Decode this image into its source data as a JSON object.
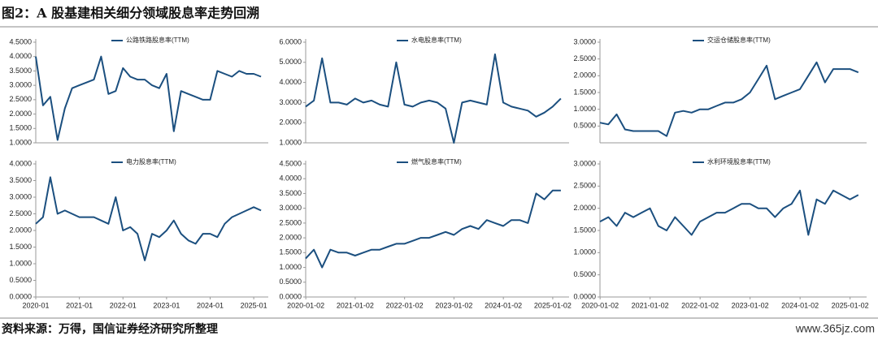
{
  "title": "图2：A 股基建相关细分领域股息率走势回溯",
  "source": "资料来源：万得，国信证券经济研究所整理",
  "watermark": "www.365jz.com",
  "chart_data": [
    {
      "type": "line",
      "xlim": [
        "2020-01",
        "2025-05"
      ],
      "x": [
        "2020-01",
        "2020-03",
        "2020-05",
        "2020-07",
        "2020-09",
        "2020-11",
        "2021-01",
        "2021-03",
        "2021-05",
        "2021-07",
        "2021-09",
        "2021-11",
        "2022-01",
        "2022-03",
        "2022-05",
        "2022-07",
        "2022-09",
        "2022-11",
        "2023-01",
        "2023-03",
        "2023-05",
        "2023-07",
        "2023-09",
        "2023-11",
        "2024-01",
        "2024-03",
        "2024-05",
        "2024-07",
        "2024-09",
        "2024-11",
        "2025-01",
        "2025-03"
      ],
      "ylim": [
        1,
        4.5
      ],
      "yticks": [
        {
          "value": 1,
          "label": "1.0000"
        },
        {
          "value": 1.5,
          "label": "1.5000"
        },
        {
          "value": 2,
          "label": "2.0000"
        },
        {
          "value": 2.5,
          "label": "2.5000"
        },
        {
          "value": 3,
          "label": "3.0000"
        },
        {
          "value": 3.5,
          "label": "3.5000"
        },
        {
          "value": 4,
          "label": "4.0000"
        },
        {
          "value": 4.5,
          "label": "4.5000"
        }
      ],
      "series": [
        {
          "name": "公路铁路股息率(TTM)",
          "color": "#1b4f7f",
          "values": [
            4.0,
            2.3,
            2.6,
            1.1,
            2.2,
            2.9,
            3.0,
            3.1,
            3.2,
            4.0,
            2.7,
            2.8,
            3.6,
            3.3,
            3.2,
            3.2,
            3.0,
            2.9,
            3.4,
            1.4,
            2.8,
            2.7,
            2.6,
            2.5,
            2.5,
            3.5,
            3.4,
            3.3,
            3.5,
            3.4,
            3.4,
            3.3
          ]
        }
      ]
    },
    {
      "type": "line",
      "xlim": [
        "2020-01",
        "2025-05"
      ],
      "x": [
        "2020-01",
        "2020-03",
        "2020-05",
        "2020-07",
        "2020-09",
        "2020-11",
        "2021-01",
        "2021-03",
        "2021-05",
        "2021-07",
        "2021-09",
        "2021-11",
        "2022-01",
        "2022-03",
        "2022-05",
        "2022-07",
        "2022-09",
        "2022-11",
        "2023-01",
        "2023-03",
        "2023-05",
        "2023-07",
        "2023-09",
        "2023-11",
        "2024-01",
        "2024-03",
        "2024-05",
        "2024-07",
        "2024-09",
        "2024-11",
        "2025-01",
        "2025-03"
      ],
      "ylim": [
        1,
        6
      ],
      "yticks": [
        {
          "value": 1,
          "label": "1.0000"
        },
        {
          "value": 2,
          "label": "2.0000"
        },
        {
          "value": 3,
          "label": "3.0000"
        },
        {
          "value": 4,
          "label": "4.0000"
        },
        {
          "value": 5,
          "label": "5.0000"
        },
        {
          "value": 6,
          "label": "6.0000"
        }
      ],
      "series": [
        {
          "name": "水电股息率(TTM)",
          "color": "#1b4f7f",
          "values": [
            2.8,
            3.1,
            5.2,
            3.0,
            3.0,
            2.9,
            3.2,
            3.0,
            3.1,
            2.9,
            2.8,
            5.0,
            2.9,
            2.8,
            3.0,
            3.1,
            3.0,
            2.7,
            1.0,
            3.0,
            3.1,
            3.0,
            2.9,
            5.4,
            3.0,
            2.8,
            2.7,
            2.6,
            2.3,
            2.5,
            2.8,
            3.2
          ]
        }
      ]
    },
    {
      "type": "line",
      "xlim": [
        "2020-01",
        "2025-05"
      ],
      "x": [
        "2020-01",
        "2020-03",
        "2020-05",
        "2020-07",
        "2020-09",
        "2020-11",
        "2021-01",
        "2021-03",
        "2021-05",
        "2021-07",
        "2021-09",
        "2021-11",
        "2022-01",
        "2022-03",
        "2022-05",
        "2022-07",
        "2022-09",
        "2022-11",
        "2023-01",
        "2023-03",
        "2023-05",
        "2023-07",
        "2023-09",
        "2023-11",
        "2024-01",
        "2024-03",
        "2024-05",
        "2024-07",
        "2024-09",
        "2024-11",
        "2025-01",
        "2025-03"
      ],
      "ylim": [
        0,
        3
      ],
      "yticks": [
        {
          "value": 0.5,
          "label": "0.5000"
        },
        {
          "value": 1,
          "label": "1.0000"
        },
        {
          "value": 1.5,
          "label": "1.5000"
        },
        {
          "value": 2,
          "label": "2.0000"
        },
        {
          "value": 2.5,
          "label": "2.5000"
        },
        {
          "value": 3,
          "label": "3.0000"
        }
      ],
      "series": [
        {
          "name": "交运仓储股息率(TTM)",
          "color": "#1b4f7f",
          "values": [
            0.6,
            0.55,
            0.85,
            0.4,
            0.35,
            0.35,
            0.35,
            0.35,
            0.2,
            0.9,
            0.95,
            0.9,
            1.0,
            1.0,
            1.1,
            1.2,
            1.2,
            1.3,
            1.5,
            1.9,
            2.3,
            1.3,
            1.4,
            1.5,
            1.6,
            2.0,
            2.4,
            1.8,
            2.2,
            2.2,
            2.2,
            2.1
          ]
        }
      ]
    },
    {
      "type": "line",
      "xlim": [
        "2020-01",
        "2025-05"
      ],
      "x": [
        "2020-01",
        "2020-03",
        "2020-05",
        "2020-07",
        "2020-09",
        "2020-11",
        "2021-01",
        "2021-03",
        "2021-05",
        "2021-07",
        "2021-09",
        "2021-11",
        "2022-01",
        "2022-03",
        "2022-05",
        "2022-07",
        "2022-09",
        "2022-11",
        "2023-01",
        "2023-03",
        "2023-05",
        "2023-07",
        "2023-09",
        "2023-11",
        "2024-01",
        "2024-03",
        "2024-05",
        "2024-07",
        "2024-09",
        "2024-11",
        "2025-01",
        "2025-03"
      ],
      "xticks": [
        "2020-01",
        "2021-01",
        "2022-01",
        "2023-01",
        "2024-01",
        "2025-01"
      ],
      "ylim": [
        0,
        4
      ],
      "yticks": [
        {
          "value": 0,
          "label": "0.0000"
        },
        {
          "value": 0.5,
          "label": "0.5000"
        },
        {
          "value": 1,
          "label": "1.0000"
        },
        {
          "value": 1.5,
          "label": "1.5000"
        },
        {
          "value": 2,
          "label": "2.0000"
        },
        {
          "value": 2.5,
          "label": "2.5000"
        },
        {
          "value": 3,
          "label": "3.0000"
        },
        {
          "value": 3.5,
          "label": "3.5000"
        },
        {
          "value": 4,
          "label": "4.0000"
        }
      ],
      "series": [
        {
          "name": "电力股息率(TTM)",
          "color": "#1b4f7f",
          "values": [
            2.2,
            2.4,
            3.6,
            2.5,
            2.6,
            2.5,
            2.4,
            2.4,
            2.4,
            2.3,
            2.2,
            3.0,
            2.0,
            2.1,
            1.9,
            1.1,
            1.9,
            1.8,
            2.0,
            2.3,
            1.9,
            1.7,
            1.6,
            1.9,
            1.9,
            1.8,
            2.2,
            2.4,
            2.5,
            2.6,
            2.7,
            2.6
          ]
        }
      ]
    },
    {
      "type": "line",
      "xlim": [
        "2020-01",
        "2025-05"
      ],
      "x": [
        "2020-01",
        "2020-03",
        "2020-05",
        "2020-07",
        "2020-09",
        "2020-11",
        "2021-01",
        "2021-03",
        "2021-05",
        "2021-07",
        "2021-09",
        "2021-11",
        "2022-01",
        "2022-03",
        "2022-05",
        "2022-07",
        "2022-09",
        "2022-11",
        "2023-01",
        "2023-03",
        "2023-05",
        "2023-07",
        "2023-09",
        "2023-11",
        "2024-01",
        "2024-03",
        "2024-05",
        "2024-07",
        "2024-09",
        "2024-11",
        "2025-01",
        "2025-03"
      ],
      "xticks": [
        "2020-01-02",
        "2021-01-02",
        "2022-01-02",
        "2023-01-02",
        "2024-01-02",
        "2025-01-02"
      ],
      "ylim": [
        0,
        4.5
      ],
      "yticks": [
        {
          "value": 0,
          "label": "0.0000"
        },
        {
          "value": 0.5,
          "label": "0.5000"
        },
        {
          "value": 1,
          "label": "1.0000"
        },
        {
          "value": 1.5,
          "label": "1.5000"
        },
        {
          "value": 2,
          "label": "2.0000"
        },
        {
          "value": 2.5,
          "label": "2.5000"
        },
        {
          "value": 3,
          "label": "3.0000"
        },
        {
          "value": 3.5,
          "label": "3.5000"
        },
        {
          "value": 4,
          "label": "4.0000"
        },
        {
          "value": 4.5,
          "label": "4.5000"
        }
      ],
      "series": [
        {
          "name": "燃气股息率(TTM)",
          "color": "#1b4f7f",
          "values": [
            1.3,
            1.6,
            1.0,
            1.6,
            1.5,
            1.5,
            1.4,
            1.5,
            1.6,
            1.6,
            1.7,
            1.8,
            1.8,
            1.9,
            2.0,
            2.0,
            2.1,
            2.2,
            2.1,
            2.3,
            2.4,
            2.3,
            2.6,
            2.5,
            2.4,
            2.6,
            2.6,
            2.5,
            3.5,
            3.3,
            3.6,
            3.6
          ]
        }
      ]
    },
    {
      "type": "line",
      "xlim": [
        "2020-01",
        "2025-05"
      ],
      "x": [
        "2020-01",
        "2020-03",
        "2020-05",
        "2020-07",
        "2020-09",
        "2020-11",
        "2021-01",
        "2021-03",
        "2021-05",
        "2021-07",
        "2021-09",
        "2021-11",
        "2022-01",
        "2022-03",
        "2022-05",
        "2022-07",
        "2022-09",
        "2022-11",
        "2023-01",
        "2023-03",
        "2023-05",
        "2023-07",
        "2023-09",
        "2023-11",
        "2024-01",
        "2024-03",
        "2024-05",
        "2024-07",
        "2024-09",
        "2024-11",
        "2025-01",
        "2025-03"
      ],
      "xticks": [
        "2020-01-02",
        "2021-01-02",
        "2022-01-02",
        "2023-01-02",
        "2024-01-02",
        "2025-01-02"
      ],
      "ylim": [
        0,
        3
      ],
      "yticks": [
        {
          "value": 0,
          "label": "0.0000"
        },
        {
          "value": 0.5,
          "label": "0.5000"
        },
        {
          "value": 1,
          "label": "1.0000"
        },
        {
          "value": 1.5,
          "label": "1.5000"
        },
        {
          "value": 2,
          "label": "2.0000"
        },
        {
          "value": 2.5,
          "label": "2.5000"
        },
        {
          "value": 3,
          "label": "3.0000"
        }
      ],
      "series": [
        {
          "name": "水利环境股息率(TTM)",
          "color": "#1b4f7f",
          "values": [
            1.7,
            1.8,
            1.6,
            1.9,
            1.8,
            1.9,
            2.0,
            1.6,
            1.5,
            1.8,
            1.6,
            1.4,
            1.7,
            1.8,
            1.9,
            1.9,
            2.0,
            2.1,
            2.1,
            2.0,
            2.0,
            1.8,
            2.0,
            2.1,
            2.4,
            1.4,
            2.2,
            2.1,
            2.4,
            2.3,
            2.2,
            2.3
          ]
        }
      ]
    }
  ]
}
